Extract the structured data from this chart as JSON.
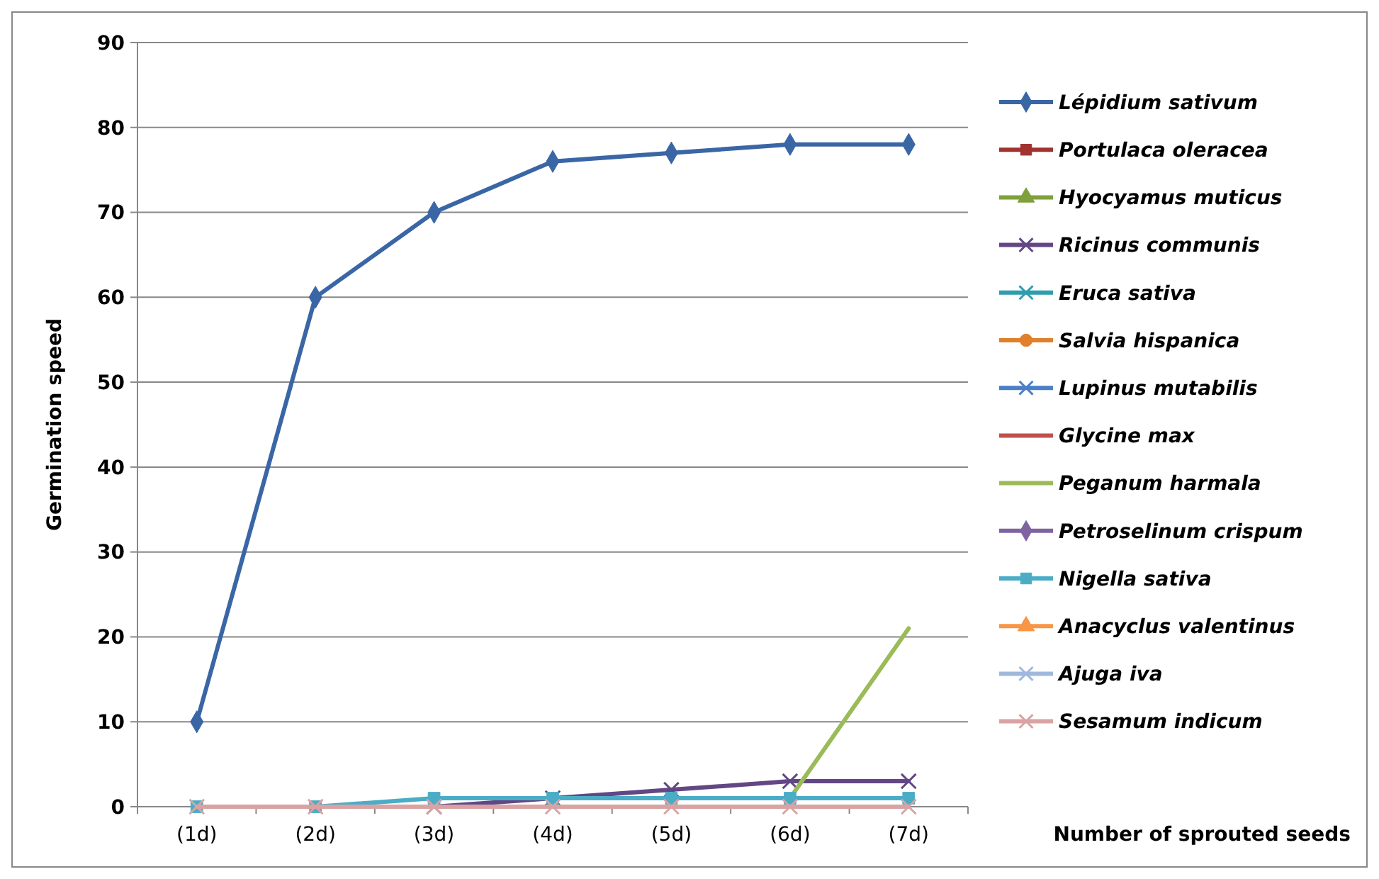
{
  "chart_data": {
    "type": "line",
    "ylabel": "Germination speed",
    "xlabel": "Number of sprouted seeds",
    "categories": [
      "(1d)",
      "(2d)",
      "(3d)",
      "(4d)",
      "(5d)",
      "(6d)",
      "(7d)"
    ],
    "ylim": [
      0,
      90
    ],
    "yticks": [
      0,
      10,
      20,
      30,
      40,
      50,
      60,
      70,
      80,
      90
    ],
    "grid": "y",
    "legend": "right",
    "series": [
      {
        "name": "Lépidium sativum",
        "color": "#3a66a6",
        "marker": "diamond",
        "values": [
          10,
          60,
          70,
          76,
          77,
          78,
          78
        ]
      },
      {
        "name": "Portulaca oleracea",
        "color": "#a0322f",
        "marker": "square",
        "values": [
          null,
          null,
          null,
          null,
          null,
          null,
          null
        ]
      },
      {
        "name": "Hyocyamus muticus",
        "color": "#7fa03a",
        "marker": "triangle",
        "values": [
          null,
          null,
          null,
          null,
          null,
          null,
          null
        ]
      },
      {
        "name": "Ricinus communis",
        "color": "#634785",
        "marker": "cross",
        "values": [
          null,
          null,
          0,
          1,
          2,
          3,
          3
        ]
      },
      {
        "name": "Eruca sativa",
        "color": "#2f9db0",
        "marker": "cross",
        "values": [
          null,
          null,
          null,
          null,
          null,
          null,
          null
        ]
      },
      {
        "name": "Salvia hispanica",
        "color": "#e0802c",
        "marker": "circle",
        "values": [
          null,
          null,
          null,
          null,
          null,
          null,
          null
        ]
      },
      {
        "name": "Lupinus mutabilis",
        "color": "#4a7fc8",
        "marker": "cross",
        "values": [
          null,
          null,
          null,
          null,
          null,
          null,
          null
        ]
      },
      {
        "name": "Glycine max",
        "color": "#c0504d",
        "marker": "none",
        "values": [
          null,
          null,
          null,
          null,
          null,
          null,
          null
        ]
      },
      {
        "name": "Peganum harmala",
        "color": "#9bbb59",
        "marker": "none",
        "values": [
          null,
          null,
          null,
          null,
          null,
          1,
          21
        ]
      },
      {
        "name": "Petroselinum crispum",
        "color": "#8064a2",
        "marker": "diamond",
        "values": [
          null,
          null,
          null,
          null,
          null,
          null,
          null
        ]
      },
      {
        "name": "Nigella sativa",
        "color": "#4bacc6",
        "marker": "square",
        "values": [
          0,
          0,
          1,
          1,
          1,
          1,
          1
        ]
      },
      {
        "name": "Anacyclus valentinus",
        "color": "#f79646",
        "marker": "triangle",
        "values": [
          null,
          null,
          null,
          null,
          null,
          null,
          null
        ]
      },
      {
        "name": "Ajuga iva",
        "color": "#9fb8dd",
        "marker": "cross",
        "values": [
          null,
          null,
          null,
          null,
          null,
          null,
          null
        ]
      },
      {
        "name": "Sesamum indicum",
        "color": "#d9a3a3",
        "marker": "cross",
        "values": [
          0,
          0,
          0,
          0,
          0,
          0,
          0
        ]
      }
    ]
  }
}
